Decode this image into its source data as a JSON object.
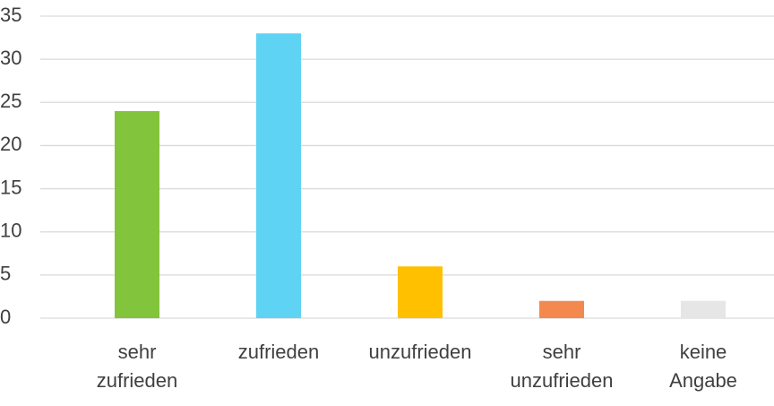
{
  "chart_data": {
    "type": "bar",
    "categories": [
      "sehr zufrieden",
      "zufrieden",
      "unzufrieden",
      "sehr unzufrieden",
      "keine Angabe"
    ],
    "values": [
      24,
      33,
      6,
      2,
      2
    ],
    "colors": [
      "#82c43c",
      "#5fd3f3",
      "#ffc000",
      "#f4894f",
      "#e6e6e6"
    ],
    "ylim": [
      0,
      35
    ],
    "yticks": [
      0,
      5,
      10,
      15,
      20,
      25,
      30,
      35
    ],
    "grid": true
  }
}
